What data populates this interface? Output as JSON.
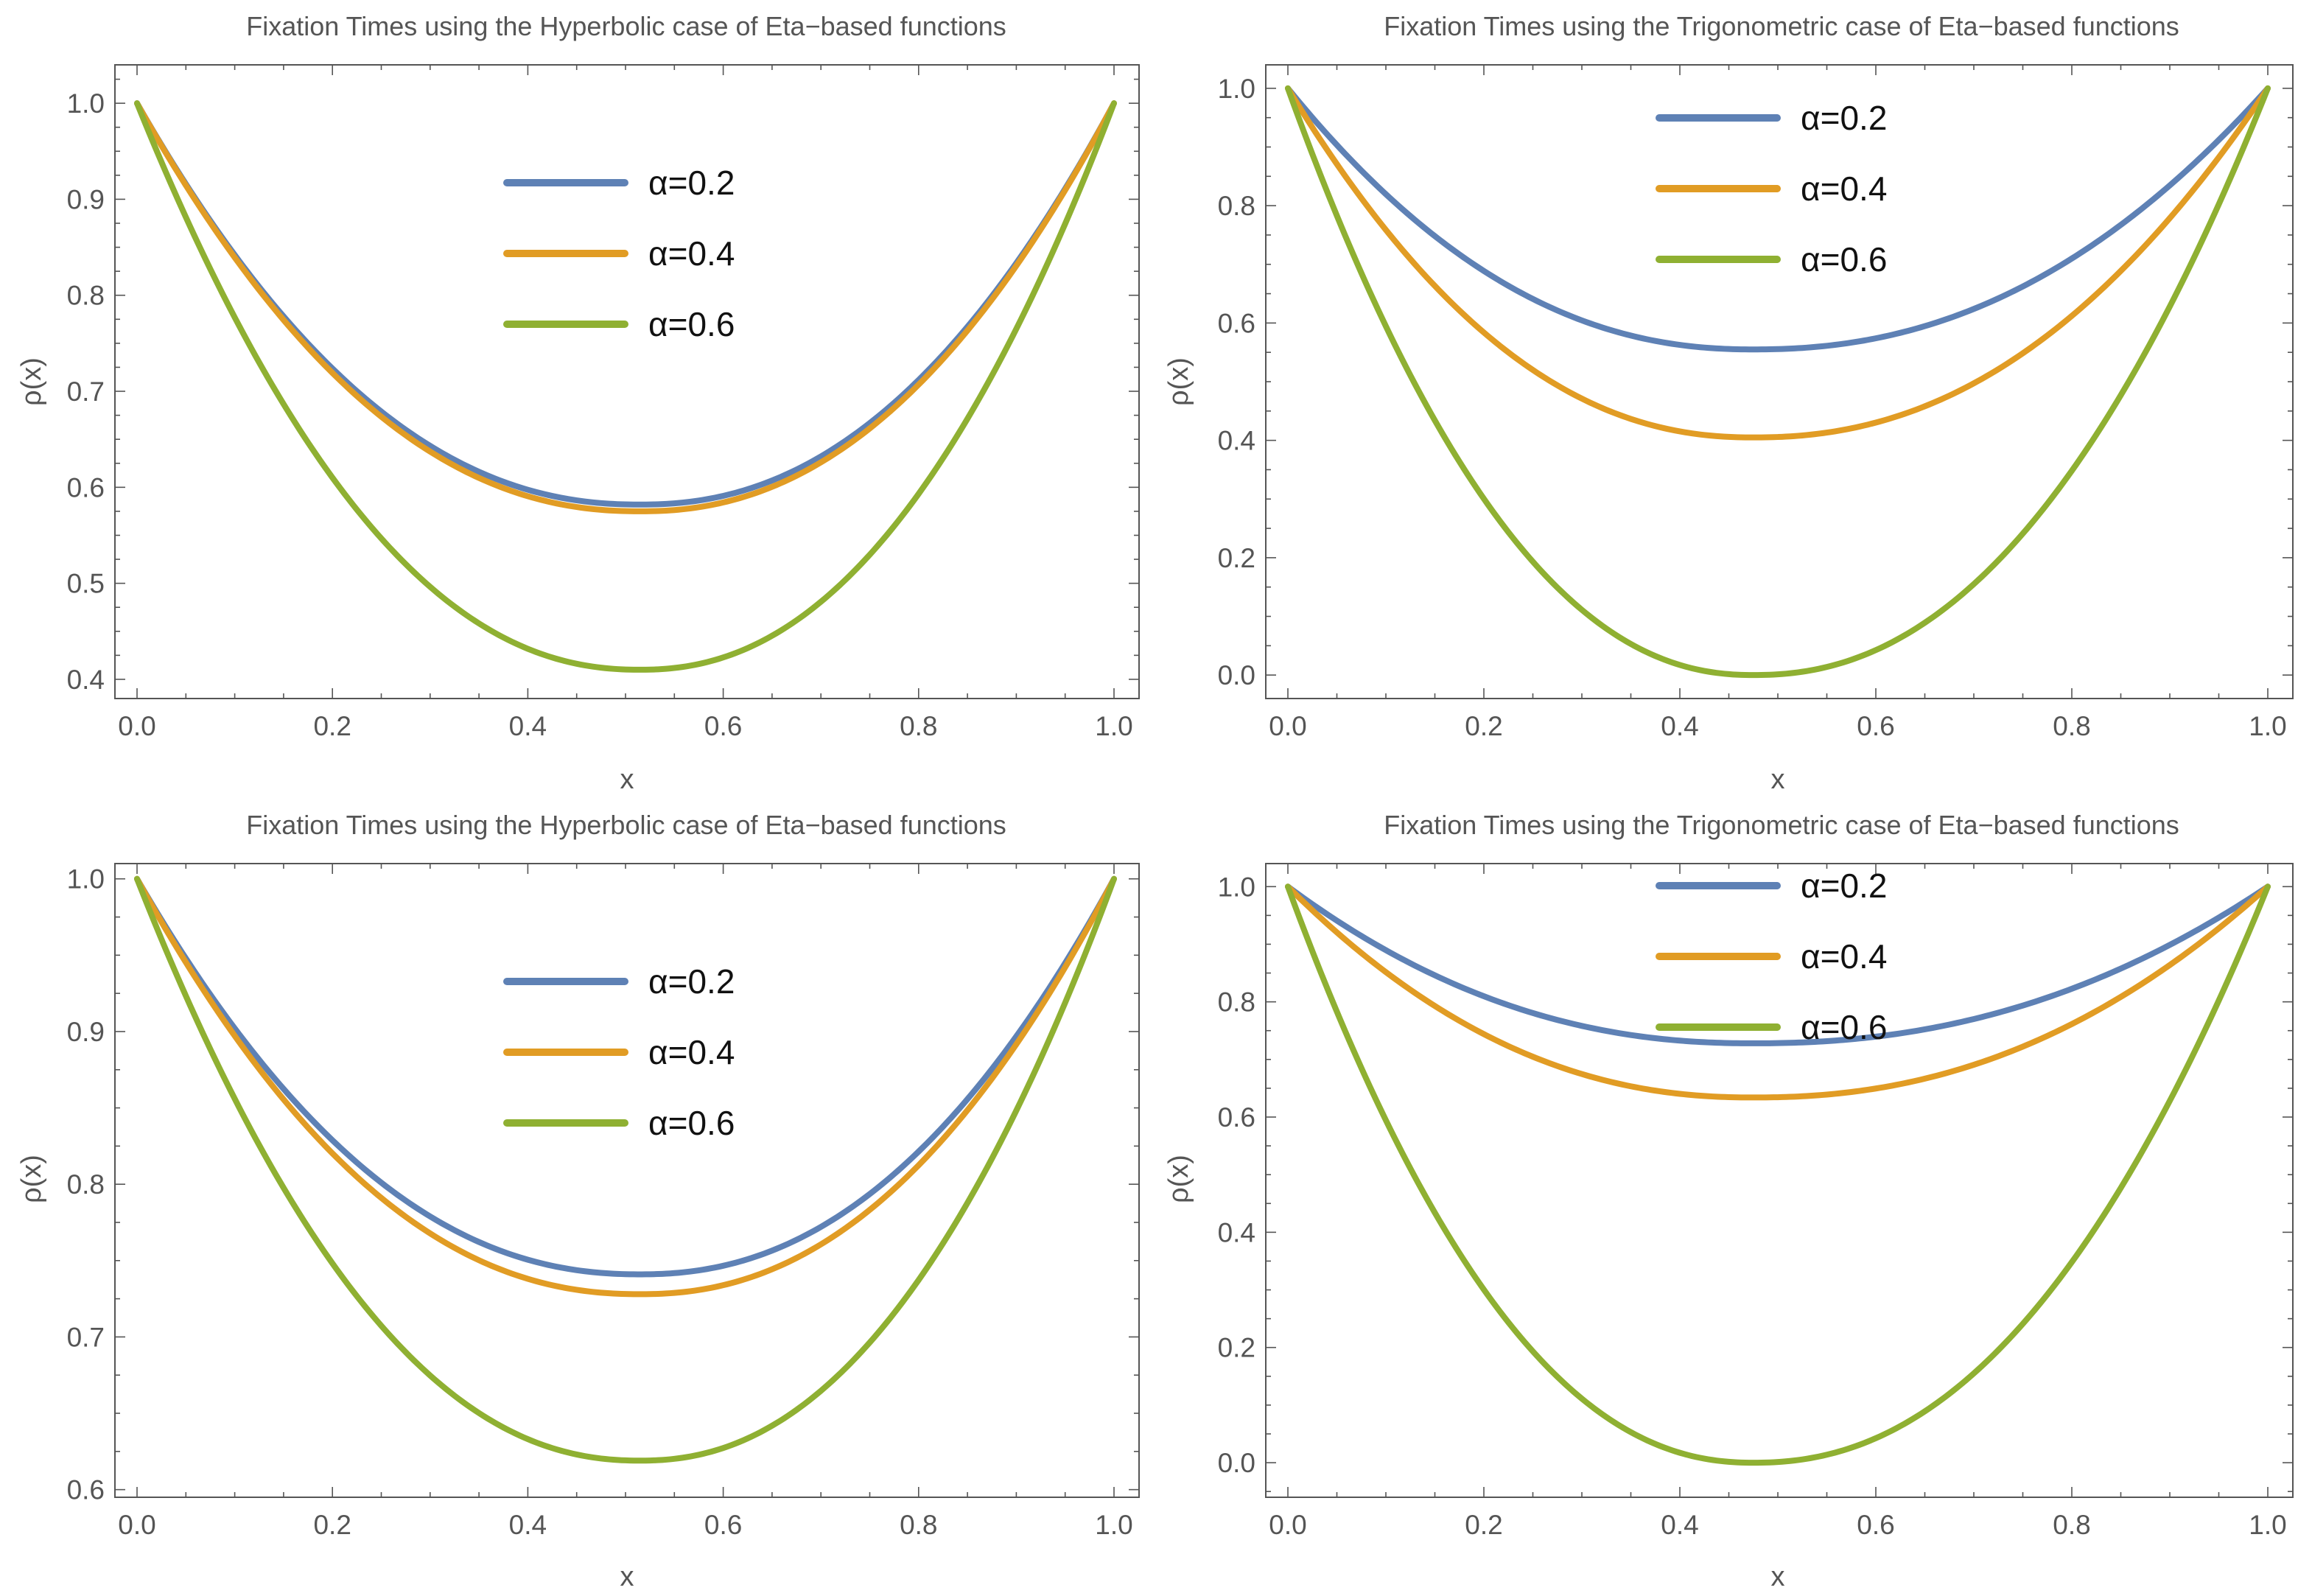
{
  "chart_data": [
    {
      "type": "line",
      "title": "Fixation Times using the Hyperbolic case of Eta−based functions",
      "xlabel": "x",
      "ylabel": "ρ(x)",
      "xlim": [
        0,
        1
      ],
      "ylim": [
        0.38,
        1.04
      ],
      "xticks": [
        0.0,
        0.2,
        0.4,
        0.6,
        0.8,
        1.0
      ],
      "xtick_labels": [
        "0.0",
        "0.2",
        "0.4",
        "0.6",
        "0.8",
        "1.0"
      ],
      "yticks": [
        0.4,
        0.5,
        0.6,
        0.7,
        0.8,
        0.9,
        1.0
      ],
      "ytick_labels": [
        "0.4",
        "0.5",
        "0.6",
        "0.7",
        "0.8",
        "0.9",
        "1.0"
      ],
      "legend_position": "upper-center",
      "series": [
        {
          "name": "α=0.2",
          "color": "#5E81B5",
          "x_min": 0.515,
          "y_min": 0.582,
          "y_start": 1.0,
          "y_end": 1.0
        },
        {
          "name": "α=0.4",
          "color": "#E19C24",
          "x_min": 0.515,
          "y_min": 0.575,
          "y_start": 1.0,
          "y_end": 1.0
        },
        {
          "name": "α=0.6",
          "color": "#8FB032",
          "x_min": 0.515,
          "y_min": 0.41,
          "y_start": 1.0,
          "y_end": 1.0
        }
      ]
    },
    {
      "type": "line",
      "title": "Fixation Times using the Trigonometric case of Eta−based functions",
      "xlabel": "x",
      "ylabel": "ρ(x)",
      "xlim": [
        0,
        1
      ],
      "ylim": [
        -0.04,
        1.04
      ],
      "xticks": [
        0.0,
        0.2,
        0.4,
        0.6,
        0.8,
        1.0
      ],
      "xtick_labels": [
        "0.0",
        "0.2",
        "0.4",
        "0.6",
        "0.8",
        "1.0"
      ],
      "yticks": [
        0.0,
        0.2,
        0.4,
        0.6,
        0.8,
        1.0
      ],
      "ytick_labels": [
        "0.0",
        "0.2",
        "0.4",
        "0.6",
        "0.8",
        "1.0"
      ],
      "legend_position": "upper-center",
      "series": [
        {
          "name": "α=0.2",
          "color": "#5E81B5",
          "x_min": 0.475,
          "y_min": 0.555,
          "y_start": 1.0,
          "y_end": 1.0
        },
        {
          "name": "α=0.4",
          "color": "#E19C24",
          "x_min": 0.475,
          "y_min": 0.405,
          "y_start": 1.0,
          "y_end": 1.0
        },
        {
          "name": "α=0.6",
          "color": "#8FB032",
          "x_min": 0.475,
          "y_min": 0.0,
          "y_start": 1.0,
          "y_end": 1.0
        }
      ]
    },
    {
      "type": "line",
      "title": "Fixation Times using the Hyperbolic case of Eta−based functions",
      "xlabel": "x",
      "ylabel": "ρ(x)",
      "xlim": [
        0,
        1
      ],
      "ylim": [
        0.595,
        1.01
      ],
      "xticks": [
        0.0,
        0.2,
        0.4,
        0.6,
        0.8,
        1.0
      ],
      "xtick_labels": [
        "0.0",
        "0.2",
        "0.4",
        "0.6",
        "0.8",
        "1.0"
      ],
      "yticks": [
        0.6,
        0.7,
        0.8,
        0.9,
        1.0
      ],
      "ytick_labels": [
        "0.6",
        "0.7",
        "0.8",
        "0.9",
        "1.0"
      ],
      "legend_position": "upper-center",
      "series": [
        {
          "name": "α=0.2",
          "color": "#5E81B5",
          "x_min": 0.515,
          "y_min": 0.741,
          "y_start": 1.0,
          "y_end": 1.0
        },
        {
          "name": "α=0.4",
          "color": "#E19C24",
          "x_min": 0.515,
          "y_min": 0.728,
          "y_start": 1.0,
          "y_end": 1.0
        },
        {
          "name": "α=0.6",
          "color": "#8FB032",
          "x_min": 0.515,
          "y_min": 0.619,
          "y_start": 1.0,
          "y_end": 1.0
        }
      ]
    },
    {
      "type": "line",
      "title": "Fixation Times using the Trigonometric case of Eta−based functions",
      "xlabel": "x",
      "ylabel": "ρ(x)",
      "xlim": [
        0,
        1
      ],
      "ylim": [
        -0.06,
        1.04
      ],
      "xticks": [
        0.0,
        0.2,
        0.4,
        0.6,
        0.8,
        1.0
      ],
      "xtick_labels": [
        "0.0",
        "0.2",
        "0.4",
        "0.6",
        "0.8",
        "1.0"
      ],
      "yticks": [
        0.0,
        0.2,
        0.4,
        0.6,
        0.8,
        1.0
      ],
      "ytick_labels": [
        "0.0",
        "0.2",
        "0.4",
        "0.6",
        "0.8",
        "1.0"
      ],
      "legend_position": "upper-center",
      "series": [
        {
          "name": "α=0.2",
          "color": "#5E81B5",
          "x_min": 0.475,
          "y_min": 0.728,
          "y_start": 1.0,
          "y_end": 1.0
        },
        {
          "name": "α=0.4",
          "color": "#E19C24",
          "x_min": 0.475,
          "y_min": 0.634,
          "y_start": 1.0,
          "y_end": 1.0
        },
        {
          "name": "α=0.6",
          "color": "#8FB032",
          "x_min": 0.475,
          "y_min": 0.0,
          "y_start": 1.0,
          "y_end": 1.0
        }
      ]
    }
  ]
}
